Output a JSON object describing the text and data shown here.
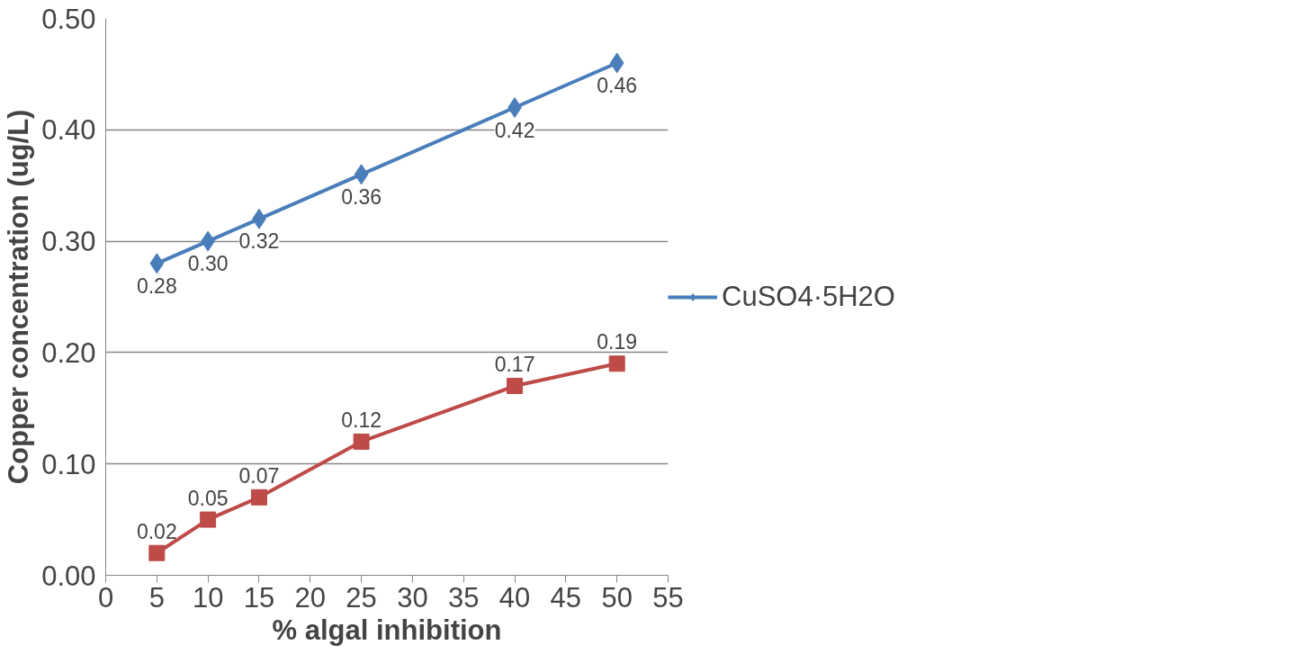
{
  "chart_data": {
    "type": "line",
    "xlabel": "% algal inhibition",
    "ylabel": "Copper concentration (ug/L)",
    "x": [
      5,
      10,
      15,
      25,
      40,
      50
    ],
    "series": [
      {
        "name": "CuSO4·5H2O",
        "color": "#4a7ebb",
        "marker": "diamond",
        "values": [
          0.28,
          0.3,
          0.32,
          0.36,
          0.42,
          0.46
        ],
        "value_labels": [
          "0.28",
          "0.30",
          "0.32",
          "0.36",
          "0.42",
          "0.46"
        ]
      },
      {
        "color": "#be4b48",
        "marker": "square",
        "values": [
          0.02,
          0.05,
          0.07,
          0.12,
          0.17,
          0.19
        ],
        "value_labels": [
          "0.02",
          "0.05",
          "0.07",
          "0.12",
          "0.17",
          "0.19"
        ]
      }
    ],
    "xlim": [
      0,
      55
    ],
    "xticks": [
      0,
      5,
      10,
      15,
      20,
      25,
      30,
      35,
      40,
      45,
      50,
      55
    ],
    "ylim": [
      0,
      0.5
    ],
    "yticks": [
      {
        "value": 0,
        "label": "0.00"
      },
      {
        "value": 0.1,
        "label": "0.10"
      },
      {
        "value": 0.2,
        "label": "0.20"
      },
      {
        "value": 0.3,
        "label": "0.30"
      },
      {
        "value": 0.4,
        "label": "0.40"
      },
      {
        "value": 0.5,
        "label": "0.50"
      }
    ],
    "grid": "y",
    "legend": "right",
    "line_style": "solid"
  }
}
